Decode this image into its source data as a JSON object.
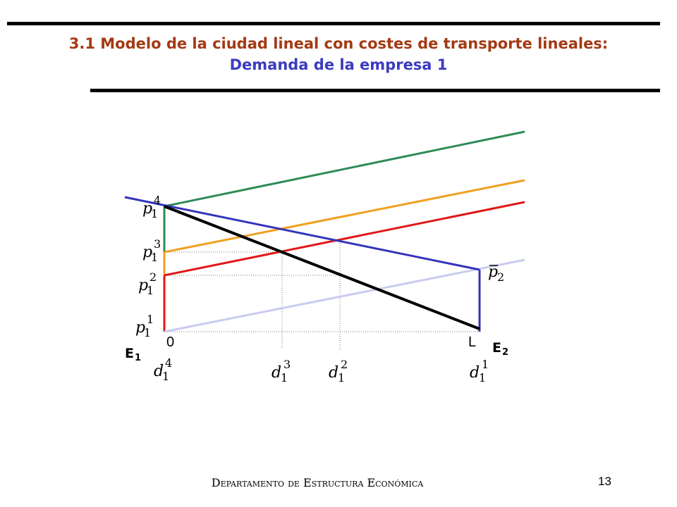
{
  "title": {
    "line1": "3.1 Modelo de la ciudad lineal con costes de transporte lineales:",
    "line2": "Demanda de la empresa 1"
  },
  "colors": {
    "title_main": "#a33a14",
    "title_sub": "#3b3bc0",
    "green": "#2e8b57",
    "orange": "#f0a020",
    "red": "#e01818",
    "blue": "#3333bb",
    "light_blue": "#c8ccf0",
    "black": "#000000"
  },
  "diagram": {
    "origin_label": "0",
    "end_label": "L",
    "firm1": {
      "letter": "E",
      "sub": "1"
    },
    "firm2": {
      "letter": "E",
      "sub": "2"
    },
    "price_labels": [
      {
        "base": "p",
        "sub": "1",
        "sup": "4"
      },
      {
        "base": "p",
        "sub": "1",
        "sup": "3"
      },
      {
        "base": "p",
        "sub": "1",
        "sup": "2"
      },
      {
        "base": "p",
        "sub": "1",
        "sup": "1"
      }
    ],
    "p2_bar": {
      "base": "p",
      "sub": "2"
    },
    "demand_labels": [
      {
        "base": "d",
        "sub": "1",
        "sup": "4"
      },
      {
        "base": "d",
        "sub": "1",
        "sup": "3"
      },
      {
        "base": "d",
        "sub": "1",
        "sup": "2"
      },
      {
        "base": "d",
        "sub": "1",
        "sup": "1"
      }
    ]
  },
  "footer": {
    "department": "Departamento de Estructura Económica",
    "page": "13"
  }
}
